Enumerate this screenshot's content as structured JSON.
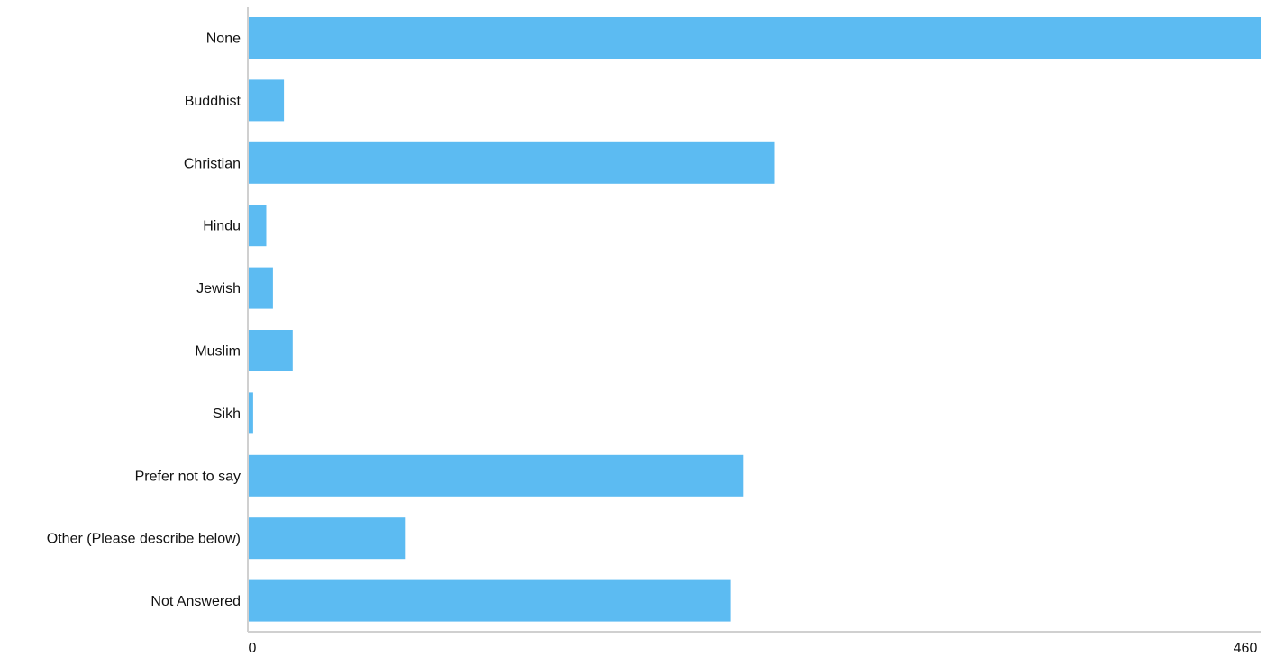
{
  "chart_data": {
    "type": "bar",
    "orientation": "horizontal",
    "categories": [
      "None",
      "Buddhist",
      "Christian",
      "Hindu",
      "Jewish",
      "Muslim",
      "Sikh",
      "Prefer not to say",
      "Other (Please describe below)",
      "Not Answered"
    ],
    "values": [
      460,
      16,
      239,
      8,
      11,
      20,
      2,
      225,
      71,
      219
    ],
    "xlim": [
      0,
      460
    ],
    "x_ticks": [
      "0",
      "460"
    ],
    "title": "",
    "xlabel": "",
    "ylabel": "",
    "grid": false,
    "bar_color": "#5cbbf2"
  }
}
